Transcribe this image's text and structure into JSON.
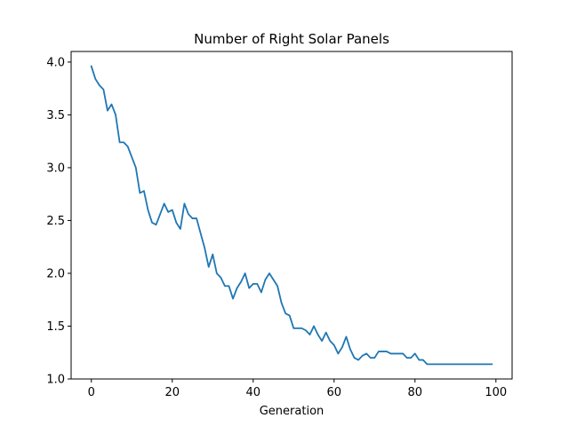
{
  "chart_data": {
    "type": "line",
    "title": "Number of Right Solar Panels",
    "xlabel": "Generation",
    "ylabel": "",
    "xlim": [
      -5,
      104
    ],
    "ylim": [
      1.0,
      4.1
    ],
    "xticks": [
      0,
      20,
      40,
      60,
      80,
      100
    ],
    "xtick_labels": [
      "0",
      "20",
      "40",
      "60",
      "80",
      "100"
    ],
    "yticks": [
      1.0,
      1.5,
      2.0,
      2.5,
      3.0,
      3.5,
      4.0
    ],
    "ytick_labels": [
      "1.0",
      "1.5",
      "2.0",
      "2.5",
      "3.0",
      "3.5",
      "4.0"
    ],
    "grid": false,
    "legend": "none",
    "colors": {
      "line": "#1f77b4",
      "axes": "#000000",
      "background": "#ffffff"
    },
    "x": [
      0,
      1,
      2,
      3,
      4,
      5,
      6,
      7,
      8,
      9,
      10,
      11,
      12,
      13,
      14,
      15,
      16,
      17,
      18,
      19,
      20,
      21,
      22,
      23,
      24,
      25,
      26,
      27,
      28,
      29,
      30,
      31,
      32,
      33,
      34,
      35,
      36,
      37,
      38,
      39,
      40,
      41,
      42,
      43,
      44,
      45,
      46,
      47,
      48,
      49,
      50,
      51,
      52,
      53,
      54,
      55,
      56,
      57,
      58,
      59,
      60,
      61,
      62,
      63,
      64,
      65,
      66,
      67,
      68,
      69,
      70,
      71,
      72,
      73,
      74,
      75,
      76,
      77,
      78,
      79,
      80,
      81,
      82,
      83,
      84,
      85,
      86,
      87,
      88,
      89,
      90,
      91,
      92,
      93,
      94,
      95,
      96,
      97,
      98,
      99
    ],
    "series": [
      {
        "values": [
          3.96,
          3.84,
          3.78,
          3.74,
          3.54,
          3.6,
          3.5,
          3.24,
          3.24,
          3.2,
          3.1,
          3.0,
          2.76,
          2.78,
          2.6,
          2.48,
          2.46,
          2.56,
          2.66,
          2.58,
          2.6,
          2.48,
          2.42,
          2.66,
          2.56,
          2.52,
          2.52,
          2.38,
          2.24,
          2.06,
          2.18,
          2.0,
          1.96,
          1.88,
          1.88,
          1.76,
          1.86,
          1.92,
          2.0,
          1.86,
          1.9,
          1.9,
          1.82,
          1.94,
          2.0,
          1.94,
          1.88,
          1.72,
          1.62,
          1.6,
          1.48,
          1.48,
          1.48,
          1.46,
          1.42,
          1.5,
          1.42,
          1.36,
          1.44,
          1.36,
          1.32,
          1.24,
          1.3,
          1.4,
          1.28,
          1.2,
          1.18,
          1.22,
          1.24,
          1.2,
          1.2,
          1.26,
          1.26,
          1.26,
          1.24,
          1.24,
          1.24,
          1.24,
          1.2,
          1.2,
          1.24,
          1.18,
          1.18,
          1.14,
          1.14,
          1.14,
          1.14,
          1.14,
          1.14,
          1.14,
          1.14,
          1.14,
          1.14,
          1.14,
          1.14,
          1.14,
          1.14,
          1.14,
          1.14,
          1.14
        ]
      }
    ]
  }
}
